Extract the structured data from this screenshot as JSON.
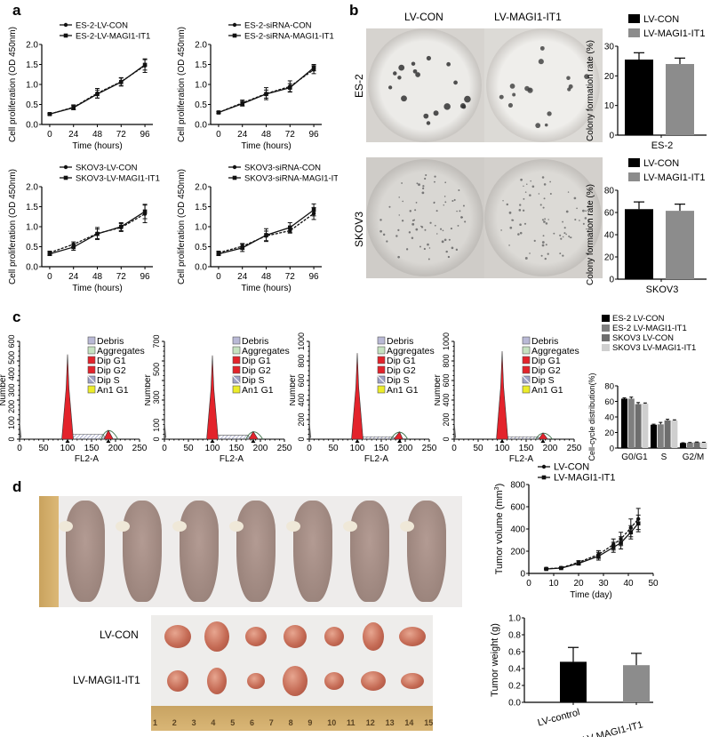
{
  "panels": {
    "a": {
      "letter": "a"
    },
    "b": {
      "letter": "b",
      "col_labels": [
        "LV-CON",
        "LV-MAGI1-IT1"
      ],
      "row_labels": [
        "ES-2",
        "SKOV3"
      ]
    },
    "c": {
      "letter": "c"
    },
    "d": {
      "letter": "d",
      "tumor_rows": [
        "LV-CON",
        "LV-MAGI1-IT1"
      ],
      "ruler_ticks": [
        "1",
        "2",
        "3",
        "4",
        "5",
        "6",
        "7",
        "8",
        "9",
        "10",
        "11",
        "12",
        "13",
        "14",
        "15"
      ]
    }
  },
  "chart_data": [
    {
      "id": "a1",
      "type": "line",
      "title": "",
      "xlabel": "Time (hours)",
      "ylabel": "Cell proliferation (OD 450nm)",
      "x": [
        0,
        24,
        48,
        72,
        96
      ],
      "xticks": [
        "0",
        "24",
        "48",
        "72",
        "96"
      ],
      "ylim": [
        0,
        2.0
      ],
      "yticks": [
        "0.0",
        "0.5",
        "1.0",
        "1.5",
        "2.0"
      ],
      "series": [
        {
          "name": "ES-2-LV-CON",
          "values": [
            0.26,
            0.43,
            0.78,
            1.07,
            1.47
          ],
          "err": [
            0.02,
            0.06,
            0.12,
            0.1,
            0.17
          ]
        },
        {
          "name": "ES-2-LV-MAGI1-IT1",
          "values": [
            0.26,
            0.42,
            0.76,
            1.06,
            1.49
          ],
          "err": [
            0.02,
            0.05,
            0.1,
            0.1,
            0.13
          ]
        }
      ]
    },
    {
      "id": "a2",
      "type": "line",
      "title": "",
      "xlabel": "Time (hours)",
      "ylabel": "Cell proliferation (OD 450nm)",
      "x": [
        0,
        24,
        48,
        72,
        96
      ],
      "xticks": [
        "0",
        "24",
        "48",
        "72",
        "96"
      ],
      "ylim": [
        0,
        2.0
      ],
      "yticks": [
        "0.0",
        "0.5",
        "1.0",
        "1.5",
        "2.0"
      ],
      "series": [
        {
          "name": "ES-2-siRNA-CON",
          "values": [
            0.3,
            0.54,
            0.77,
            0.95,
            1.37
          ],
          "err": [
            0.02,
            0.07,
            0.15,
            0.14,
            0.1
          ]
        },
        {
          "name": "ES-2-siRNA-MAGI1-IT1",
          "values": [
            0.3,
            0.52,
            0.76,
            0.92,
            1.42
          ],
          "err": [
            0.02,
            0.06,
            0.1,
            0.1,
            0.08
          ]
        }
      ]
    },
    {
      "id": "a3",
      "type": "line",
      "title": "",
      "xlabel": "Time (hours)",
      "ylabel": "Cell proliferation (OD 450nm)",
      "x": [
        0,
        24,
        48,
        72,
        96
      ],
      "xticks": [
        "0",
        "24",
        "48",
        "72",
        "96"
      ],
      "ylim": [
        0,
        2.0
      ],
      "yticks": [
        "0.0",
        "0.5",
        "1.0",
        "1.5",
        "2.0"
      ],
      "series": [
        {
          "name": "SKOV3-LV-CON",
          "values": [
            0.35,
            0.56,
            0.83,
            0.98,
            1.32
          ],
          "err": [
            0.04,
            0.06,
            0.15,
            0.1,
            0.22
          ]
        },
        {
          "name": "SKOV3-LV-MAGI1-IT1",
          "values": [
            0.32,
            0.49,
            0.82,
            1.0,
            1.38
          ],
          "err": [
            0.04,
            0.08,
            0.12,
            0.1,
            0.18
          ]
        }
      ]
    },
    {
      "id": "a4",
      "type": "line",
      "title": "",
      "xlabel": "Time (hours)",
      "ylabel": "Cell proliferation (OD 450nm)",
      "x": [
        0,
        24,
        48,
        72,
        96
      ],
      "xticks": [
        "0",
        "24",
        "48",
        "72",
        "96"
      ],
      "ylim": [
        0,
        2.0
      ],
      "yticks": [
        "0.0",
        "0.5",
        "1.0",
        "1.5",
        "2.0"
      ],
      "series": [
        {
          "name": "SKOV3-siRNA-CON",
          "values": [
            0.35,
            0.51,
            0.77,
            0.9,
            1.33
          ],
          "err": [
            0.04,
            0.07,
            0.12,
            0.06,
            0.15
          ]
        },
        {
          "name": "SKOV3-siRNA-MAGI1-IT1",
          "values": [
            0.32,
            0.47,
            0.79,
            0.98,
            1.42
          ],
          "err": [
            0.04,
            0.09,
            0.16,
            0.12,
            0.15
          ]
        }
      ]
    },
    {
      "id": "b1",
      "type": "bar",
      "title": "",
      "xlabel": "ES-2",
      "ylabel": "Colony formation rate (%)",
      "categories": [
        "LV-CON",
        "LV-MAGI1-IT1"
      ],
      "values": [
        25.5,
        24
      ],
      "err": [
        2.3,
        2
      ],
      "ylim": [
        0,
        30
      ],
      "yticks": [
        "0",
        "10",
        "20",
        "30"
      ],
      "colors": [
        "#000000",
        "#8c8c8c"
      ],
      "legend": [
        "LV-CON",
        "LV-MAGI1-IT1"
      ]
    },
    {
      "id": "b2",
      "type": "bar",
      "title": "",
      "xlabel": "SKOV3",
      "ylabel": "Colony formation rate (%)",
      "categories": [
        "LV-CON",
        "LV-MAGI1-IT1"
      ],
      "values": [
        63,
        61.5
      ],
      "err": [
        6.5,
        6
      ],
      "ylim": [
        0,
        80
      ],
      "yticks": [
        "0",
        "20",
        "40",
        "60",
        "80"
      ],
      "colors": [
        "#000000",
        "#8c8c8c"
      ],
      "legend": [
        "LV-CON",
        "LV-MAGI1-IT1"
      ]
    },
    {
      "id": "c1",
      "type": "area",
      "title": "",
      "xlabel": "FL2-A",
      "ylabel": "Number",
      "xlim": [
        0,
        250
      ],
      "xticks": [
        "0",
        "50",
        "100",
        "150",
        "200",
        "250"
      ],
      "ylim": [
        0,
        600
      ],
      "yticks": [
        "0",
        "100",
        "200",
        "300",
        "400",
        "500",
        "600"
      ],
      "g1_peak": {
        "x": 100,
        "y": 520
      },
      "g2_peak": {
        "x": 185,
        "y": 55
      },
      "s_level": 30,
      "legend": [
        "Debris",
        "Aggregates",
        "Dip G1",
        "Dip G2",
        "Dip S",
        "An1 G1"
      ]
    },
    {
      "id": "c2",
      "type": "area",
      "title": "",
      "xlabel": "FL2-A",
      "ylabel": "Number",
      "xlim": [
        0,
        250
      ],
      "xticks": [
        "0",
        "50",
        "100",
        "150",
        "200",
        "250"
      ],
      "ylim": [
        0,
        700
      ],
      "yticks": [
        "0",
        "100",
        "300",
        "500",
        "700"
      ],
      "g1_peak": {
        "x": 100,
        "y": 600
      },
      "g2_peak": {
        "x": 185,
        "y": 55
      },
      "s_level": 28,
      "legend": [
        "Debris",
        "Aggregates",
        "Dip G1",
        "Dip G2",
        "Dip S",
        "An1 G1"
      ]
    },
    {
      "id": "c3",
      "type": "area",
      "title": "",
      "xlabel": "FL2-A",
      "ylabel": "Number",
      "xlim": [
        0,
        250
      ],
      "xticks": [
        "0",
        "50",
        "100",
        "150",
        "200",
        "250"
      ],
      "ylim": [
        0,
        1000
      ],
      "yticks": [
        "0",
        "200",
        "400",
        "600",
        "800",
        "1000"
      ],
      "g1_peak": {
        "x": 100,
        "y": 880
      },
      "g2_peak": {
        "x": 188,
        "y": 75
      },
      "s_level": 25,
      "legend": [
        "Debris",
        "Aggregates",
        "Dip G1",
        "Dip G2",
        "Dip S",
        "An1 G1"
      ]
    },
    {
      "id": "c4",
      "type": "area",
      "title": "",
      "xlabel": "FL2-A",
      "ylabel": "Number",
      "xlim": [
        0,
        250
      ],
      "xticks": [
        "0",
        "50",
        "100",
        "150",
        "200",
        "250"
      ],
      "ylim": [
        0,
        1000
      ],
      "yticks": [
        "0",
        "200",
        "400",
        "600",
        "800",
        "1000"
      ],
      "g1_peak": {
        "x": 100,
        "y": 900
      },
      "g2_peak": {
        "x": 185,
        "y": 65
      },
      "s_level": 25,
      "legend": [
        "Debris",
        "Aggregates",
        "Dip G1",
        "Dip G2",
        "Dip S",
        "An1 G1"
      ]
    },
    {
      "id": "c5",
      "type": "bar",
      "title": "",
      "xlabel": "",
      "ylabel": "Cell-cycle distribution(%)",
      "categories": [
        "G0/G1",
        "S",
        "G2/M"
      ],
      "ylim": [
        0,
        80
      ],
      "yticks": [
        "0",
        "20",
        "40",
        "60",
        "80"
      ],
      "series": [
        {
          "name": "ES-2 LV-CON",
          "color": "#000000",
          "values": [
            63.5,
            30,
            6.5
          ],
          "err": [
            1,
            0.7,
            0.3
          ]
        },
        {
          "name": "ES-2 LV-MAGI1-IT1",
          "color": "#7f7f7f",
          "values": [
            63.5,
            30.5,
            6.8
          ],
          "err": [
            2,
            2.5,
            0.4
          ]
        },
        {
          "name": "SKOV3 LV-CON",
          "color": "#6e6e6e",
          "values": [
            56.5,
            35.5,
            7.5
          ],
          "err": [
            2,
            1.5,
            0.3
          ]
        },
        {
          "name": "SKOV3 LV-MAGI1-IT1",
          "color": "#cfcfcf",
          "values": [
            57,
            35.5,
            7.2
          ],
          "err": [
            1,
            0.8,
            0.3
          ]
        }
      ]
    },
    {
      "id": "d1",
      "type": "line",
      "title": "",
      "xlabel": "Time (day)",
      "ylabel": "Tumor volume (mm3)",
      "x": [
        7,
        13,
        20,
        28,
        34,
        37,
        41,
        44
      ],
      "xlim": [
        0,
        50
      ],
      "xticks": [
        "0",
        "10",
        "20",
        "30",
        "40",
        "50"
      ],
      "ylim": [
        0,
        800
      ],
      "yticks": [
        "0",
        "200",
        "400",
        "600",
        "800"
      ],
      "series": [
        {
          "name": "LV-CON",
          "values": [
            42,
            50,
            100,
            170,
            260,
            310,
            410,
            490
          ],
          "err": [
            5,
            5,
            15,
            35,
            50,
            60,
            80,
            95
          ]
        },
        {
          "name": "LV-MAGI1-IT1",
          "values": [
            40,
            48,
            90,
            155,
            235,
            275,
            370,
            450
          ],
          "err": [
            5,
            5,
            15,
            35,
            45,
            55,
            60,
            75
          ]
        }
      ]
    },
    {
      "id": "d2",
      "type": "bar",
      "title": "",
      "xlabel": "",
      "ylabel": "Tumor weight (g)",
      "categories": [
        "LV-control",
        "LV-MAGI1-IT1"
      ],
      "values": [
        0.48,
        0.44
      ],
      "err": [
        0.17,
        0.14
      ],
      "ylim": [
        0,
        1.0
      ],
      "yticks": [
        "0.0",
        "0.2",
        "0.4",
        "0.6",
        "0.8",
        "1.0"
      ],
      "colors": [
        "#000000",
        "#8c8c8c"
      ]
    }
  ],
  "legend_colors": {
    "Debris": "#b9b9d6",
    "Aggregates": "#c6e2c0",
    "Dip G1": "#e3232b",
    "Dip G2": "#e3232b",
    "Dip S": "#9fa3c8",
    "An1 G1": "#ecec2a"
  }
}
